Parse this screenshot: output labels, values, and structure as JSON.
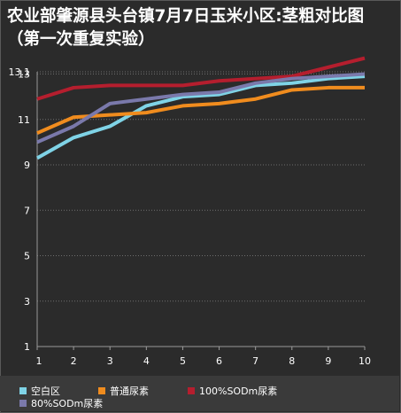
{
  "chart_data": {
    "type": "line",
    "title": "农业部肇源县头台镇7月7日玉米小区:茎粗对比图（第一次重复实验）",
    "x": [
      1,
      2,
      3,
      4,
      5,
      6,
      7,
      8,
      9,
      10
    ],
    "x_ticks": [
      "1",
      "2",
      "3",
      "4",
      "5",
      "6",
      "7",
      "8",
      "9",
      "10"
    ],
    "y_ticks": [
      "13.1",
      "13",
      "11",
      "9",
      "7",
      "5",
      "3",
      "1"
    ],
    "ylim": [
      1,
      13.1
    ],
    "grid": true,
    "legend_position": "bottom",
    "series": [
      {
        "name": "空白区",
        "color": "#7fd3e6",
        "values": [
          9.3,
          10.2,
          10.7,
          11.6,
          12.0,
          12.1,
          12.5,
          12.6,
          12.8,
          12.9
        ]
      },
      {
        "name": "普通尿素",
        "color": "#f08c1e",
        "values": [
          10.4,
          11.1,
          11.2,
          11.3,
          11.6,
          11.7,
          11.9,
          12.3,
          12.4,
          12.4
        ]
      },
      {
        "name": "100%SODm尿素",
        "color": "#b51e2e",
        "values": [
          11.9,
          12.4,
          12.5,
          12.5,
          12.5,
          12.7,
          12.8,
          12.9,
          13.3,
          13.7
        ]
      },
      {
        "name": "80%SODm尿素",
        "color": "#7a79ab",
        "values": [
          10.0,
          10.7,
          11.7,
          11.9,
          12.1,
          12.2,
          12.6,
          12.8,
          12.9,
          13.0
        ]
      }
    ]
  }
}
